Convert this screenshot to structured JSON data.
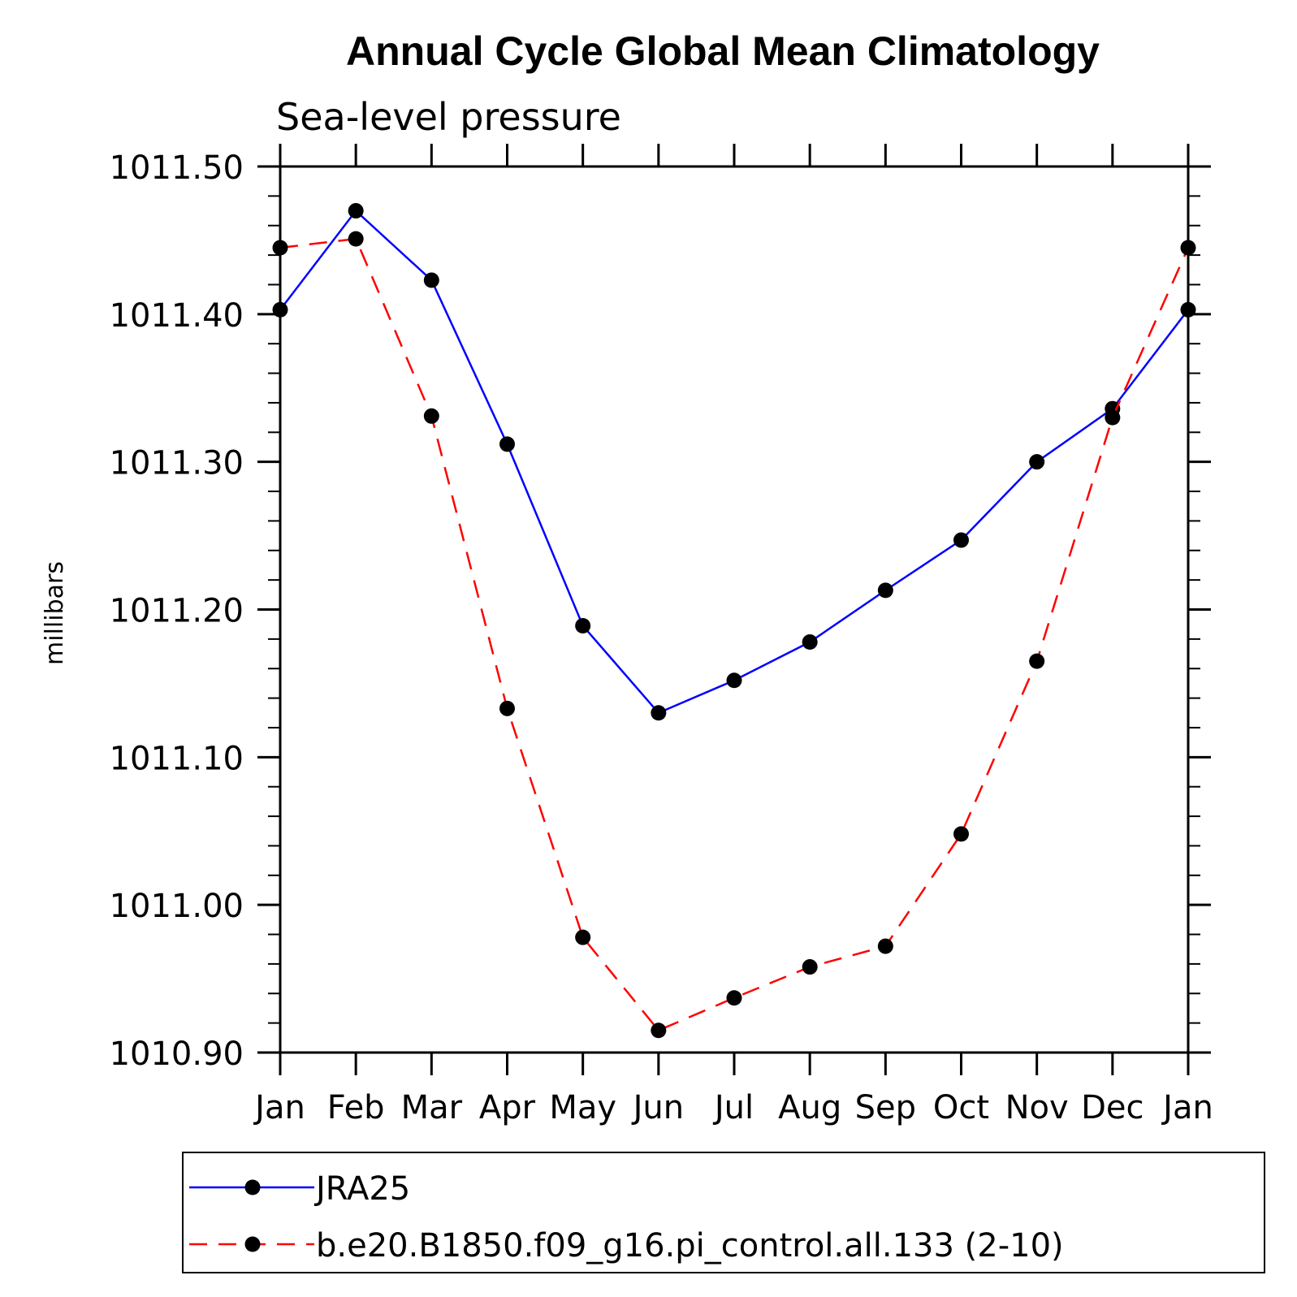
{
  "chart_data": {
    "type": "line",
    "title": "Annual Cycle Global Mean Climatology",
    "subtitle": "Sea-level pressure",
    "ylabel": "millibars",
    "xlabel": "",
    "categories": [
      "Jan",
      "Feb",
      "Mar",
      "Apr",
      "May",
      "Jun",
      "Jul",
      "Aug",
      "Sep",
      "Oct",
      "Nov",
      "Dec",
      "Jan"
    ],
    "ylim": [
      1010.9,
      1011.5
    ],
    "yticks": [
      "1010.90",
      "1011.00",
      "1011.10",
      "1011.20",
      "1011.30",
      "1011.40",
      "1011.50"
    ],
    "grid": false,
    "legend_position": "bottom",
    "series": [
      {
        "name": "JRA25",
        "color": "#0000ff",
        "line_style": "solid",
        "marker": "filled-circle",
        "values": [
          1011.403,
          1011.47,
          1011.423,
          1011.312,
          1011.189,
          1011.13,
          1011.152,
          1011.178,
          1011.213,
          1011.247,
          1011.3,
          1011.336,
          1011.403
        ]
      },
      {
        "name": "b.e20.B1850.f09_g16.pi_control.all.133 (2-10)",
        "color": "#ff0000",
        "line_style": "dashed",
        "marker": "filled-circle",
        "values": [
          1011.445,
          1011.451,
          1011.331,
          1011.133,
          1010.978,
          1010.915,
          1010.937,
          1010.958,
          1010.972,
          1011.048,
          1011.165,
          1011.33,
          1011.445
        ]
      }
    ]
  }
}
